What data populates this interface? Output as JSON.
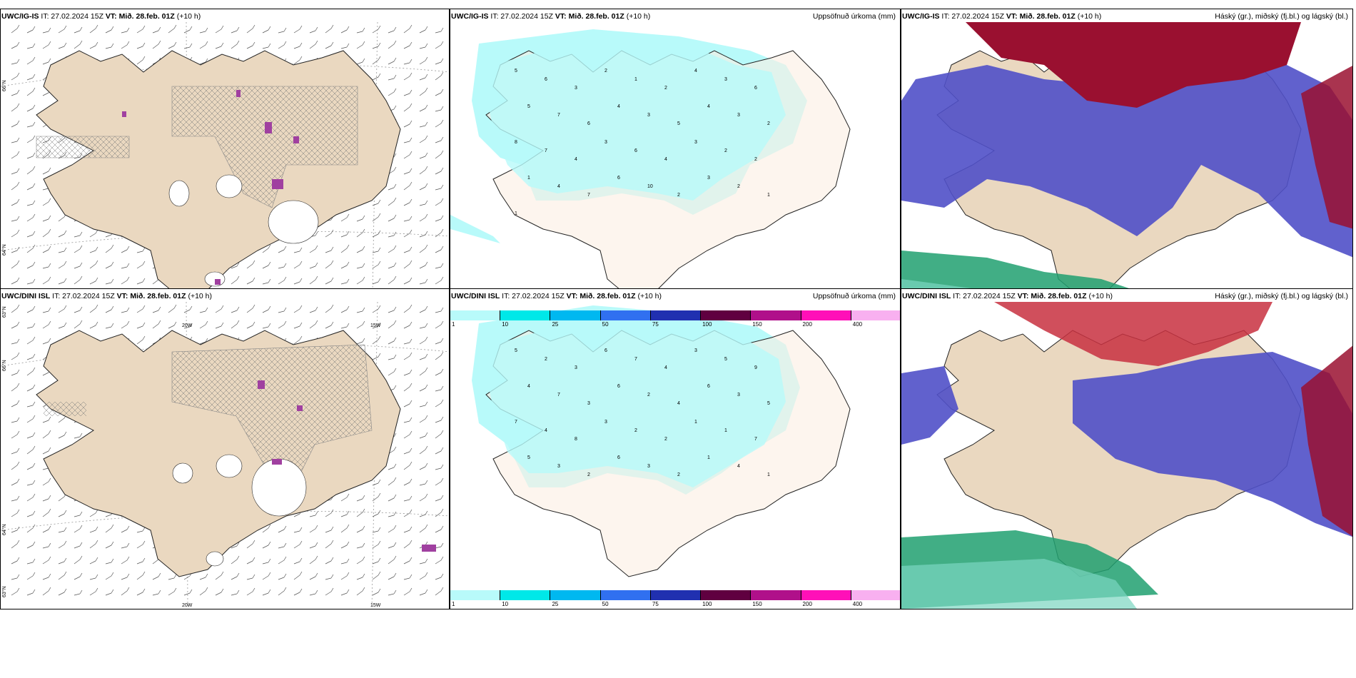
{
  "top_row": {
    "wind": {
      "model": "UWC/IG-IS",
      "it": "IT: 27.02.2024 15Z",
      "vt": "VT: Mið. 28.feb. 01Z",
      "lead": "(+10 h)"
    },
    "precip": {
      "model": "UWC/IG-IS",
      "it": "IT: 27.02.2024 15Z",
      "vt": "VT: Mið. 28.feb. 01Z",
      "lead": "(+10 h)",
      "product": "Uppsöfnuð úrkoma (mm)"
    },
    "cloud": {
      "model": "UWC/IG-IS",
      "it": "IT: 27.02.2024 15Z",
      "vt": "VT: Mið. 28.feb. 01Z",
      "lead": "(+10 h)",
      "product": "Háský (gr.), miðský (fj.bl.) og lágský (bl.)"
    }
  },
  "bottom_row": {
    "wind": {
      "model": "UWC/DINI ISL",
      "it": "IT: 27.02.2024 15Z",
      "vt": "VT: Mið. 28.feb. 01Z",
      "lead": "(+10 h)"
    },
    "precip": {
      "model": "UWC/DINI ISL",
      "it": "IT: 27.02.2024 15Z",
      "vt": "VT: Mið. 28.feb. 01Z",
      "lead": "(+10 h)",
      "product": "Uppsöfnuð úrkoma (mm)"
    },
    "cloud": {
      "model": "UWC/DINI ISL",
      "it": "IT: 27.02.2024 15Z",
      "vt": "VT: Mið. 28.feb. 01Z",
      "lead": "(+10 h)",
      "product": "Háský (gr.), miðský (fj.bl.) og lágský (bl.)"
    }
  },
  "axes": {
    "lat_66": "66°N",
    "lat_64": "64°N",
    "lat_63": "63°N",
    "lon_20": "20W",
    "lon_15": "15W"
  },
  "precip_legend": {
    "labels": [
      "1",
      "10",
      "25",
      "50",
      "75",
      "100",
      "150",
      "200",
      "400"
    ],
    "colors": [
      "#b8fafa",
      "#00e8e8",
      "#00b8f0",
      "#3070f0",
      "#2030b0",
      "#600040",
      "#b0108a",
      "#ff10b8",
      "#f8b0f0"
    ]
  },
  "colors": {
    "land": "#ead8c0",
    "land_precip": "#fbeee2",
    "light_precip": "#b8fafa",
    "high_cloud": "#9a1030",
    "mid_cloud": "#5050c8",
    "low_cloud": "#20a070"
  },
  "precip_values_top": [
    "5",
    "6",
    "3",
    "2",
    "1",
    "2",
    "4",
    "3",
    "6",
    "5",
    "7",
    "6",
    "4",
    "3",
    "5",
    "4",
    "3",
    "2",
    "8",
    "7",
    "4",
    "3",
    "6",
    "4",
    "3",
    "2",
    "2",
    "1",
    "4",
    "7",
    "6",
    "10",
    "2",
    "3",
    "2",
    "1",
    "1"
  ],
  "precip_values_bottom": [
    "5",
    "2",
    "3",
    "6",
    "7",
    "4",
    "3",
    "5",
    "9",
    "4",
    "7",
    "3",
    "6",
    "2",
    "4",
    "6",
    "3",
    "5",
    "7",
    "4",
    "8",
    "3",
    "2",
    "2",
    "1",
    "1",
    "7",
    "5",
    "3",
    "2",
    "6",
    "3",
    "2",
    "1",
    "4",
    "1"
  ]
}
